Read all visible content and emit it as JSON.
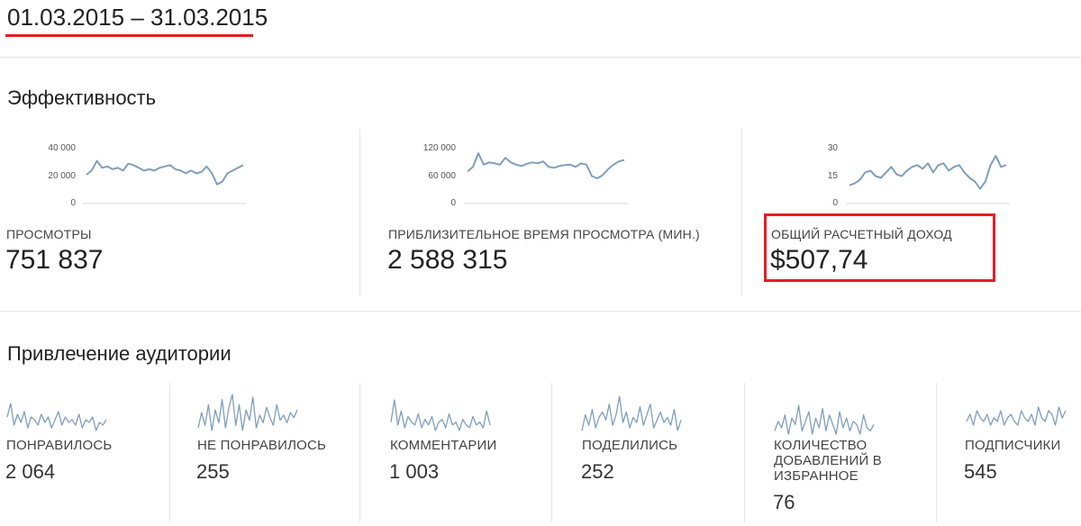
{
  "header": {
    "date_range": "01.03.2015 – 31.03.2015"
  },
  "performance": {
    "title": "Эффективность",
    "metrics": [
      {
        "label": "ПРОСМОТРЫ",
        "value": "751 837",
        "y_ticks": [
          "40 000",
          "20 000",
          "0"
        ],
        "series": [
          21000,
          24000,
          31000,
          26000,
          27000,
          25000,
          26000,
          24000,
          29000,
          28000,
          26000,
          24000,
          25000,
          24000,
          26000,
          27000,
          28000,
          25000,
          24000,
          22000,
          24000,
          22000,
          23000,
          27000,
          22000,
          14000,
          16000,
          22000,
          24000,
          26000,
          28000
        ]
      },
      {
        "label": "ПРИБЛИЗИТЕЛЬНОЕ ВРЕМЯ ПРОСМОТРА (МИН.)",
        "value": "2 588 315",
        "y_ticks": [
          "120 000",
          "60 000",
          "0"
        ],
        "series": [
          70000,
          80000,
          110000,
          85000,
          90000,
          88000,
          85000,
          100000,
          90000,
          85000,
          82000,
          87000,
          90000,
          88000,
          92000,
          80000,
          78000,
          82000,
          84000,
          85000,
          80000,
          88000,
          85000,
          60000,
          55000,
          62000,
          75000,
          85000,
          92000,
          95000
        ]
      },
      {
        "label": "ОБЩИЙ РАСЧЕТНЫЙ ДОХОД",
        "value": "$507,74",
        "y_ticks": [
          "30",
          "15",
          "0"
        ],
        "highlighted": true,
        "series": [
          10,
          11,
          13,
          17,
          18,
          15,
          14,
          17,
          20,
          16,
          15,
          18,
          20,
          21,
          19,
          22,
          17,
          21,
          22,
          18,
          20,
          21,
          17,
          14,
          12,
          8,
          12,
          21,
          26,
          20,
          21
        ]
      }
    ]
  },
  "audience": {
    "title": "Привлечение аудитории",
    "metrics": [
      {
        "label": "ПОНРАВИЛОСЬ",
        "value": "2 064",
        "series": [
          18,
          28,
          12,
          20,
          14,
          22,
          10,
          18,
          16,
          12,
          20,
          14,
          18,
          10,
          16,
          22,
          12,
          18,
          14,
          16,
          12,
          20,
          10,
          16,
          14,
          18,
          8,
          14,
          12,
          16
        ]
      },
      {
        "label": "НЕ ПОНРАВИЛОСЬ",
        "value": "255",
        "series": [
          12,
          24,
          14,
          30,
          10,
          26,
          16,
          34,
          12,
          28,
          38,
          14,
          30,
          10,
          26,
          18,
          36,
          12,
          22,
          16,
          28,
          20,
          14,
          30,
          18,
          22,
          16,
          24,
          20,
          26
        ]
      },
      {
        "label": "КОММЕНТАРИИ",
        "value": "1 003",
        "series": [
          14,
          30,
          12,
          22,
          10,
          18,
          14,
          12,
          20,
          10,
          16,
          12,
          18,
          8,
          14,
          16,
          10,
          20,
          12,
          14,
          8,
          16,
          12,
          10,
          18,
          12,
          14,
          10,
          22,
          12
        ]
      },
      {
        "label": "ПОДЕЛИЛИСЬ",
        "value": "252",
        "series": [
          10,
          22,
          14,
          26,
          12,
          20,
          24,
          18,
          30,
          14,
          22,
          36,
          16,
          24,
          12,
          20,
          16,
          28,
          14,
          22,
          30,
          12,
          18,
          24,
          16,
          20,
          14,
          26,
          10,
          18
        ]
      },
      {
        "label": "КОЛИЧЕСТВО ДОБАВЛЕНИЙ В ИЗБРАННОЕ",
        "value": "76",
        "series": [
          12,
          18,
          14,
          22,
          10,
          20,
          16,
          28,
          12,
          18,
          24,
          10,
          20,
          14,
          26,
          12,
          22,
          16,
          10,
          24,
          14,
          20,
          12,
          18,
          16,
          10,
          22,
          14,
          12,
          16
        ]
      },
      {
        "label": "ПОДПИСЧИКИ",
        "value": "545",
        "series": [
          12,
          16,
          10,
          18,
          14,
          12,
          16,
          10,
          14,
          12,
          18,
          10,
          14,
          16,
          12,
          10,
          18,
          14,
          12,
          16,
          10,
          20,
          14,
          12,
          18,
          16,
          10,
          20,
          14,
          18
        ]
      }
    ]
  }
}
